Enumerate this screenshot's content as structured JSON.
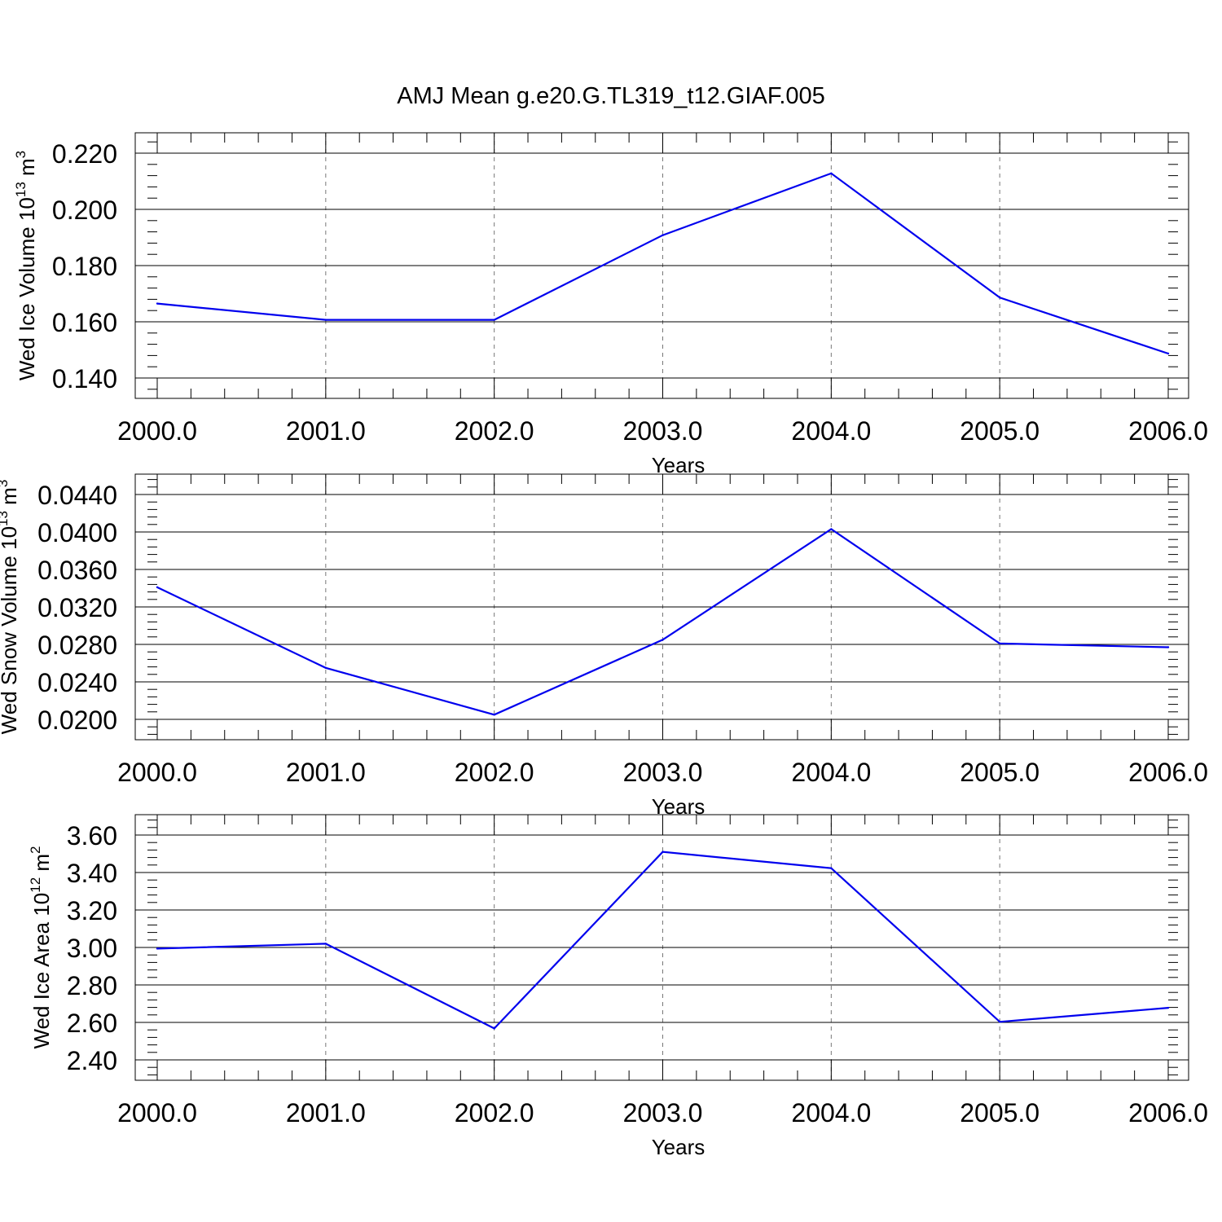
{
  "title": "AMJ Mean g.e20.G.TL319_t12.GIAF.005",
  "colors": {
    "line": "#0000ee",
    "grid": "#777777",
    "axis": "#000000"
  },
  "chart_data": [
    {
      "type": "line",
      "ylabel": "Wed Ice Volume 10",
      "ylabel_exp": "13",
      "ylabel_unit": " m",
      "ylabel_unit_exp": "3",
      "xlabel": "Years",
      "xlim": [
        2000,
        2006
      ],
      "ylim": [
        0.14,
        0.22
      ],
      "yticks": [
        "0.140",
        "0.160",
        "0.180",
        "0.200",
        "0.220"
      ],
      "xticks": [
        "2000.0",
        "2001.0",
        "2002.0",
        "2003.0",
        "2004.0",
        "2005.0",
        "2006.0"
      ],
      "x": [
        2000,
        2001,
        2002,
        2003,
        2004,
        2005,
        2006
      ],
      "y": [
        0.1665,
        0.1607,
        0.1607,
        0.1908,
        0.2128,
        0.1686,
        0.1487
      ],
      "grid": "vertical dashed"
    },
    {
      "type": "line",
      "ylabel": "Wed Snow Volume 10",
      "ylabel_exp": "13",
      "ylabel_unit": " m",
      "ylabel_unit_exp": "3",
      "xlabel": "Years",
      "xlim": [
        2000,
        2006
      ],
      "ylim": [
        0.02,
        0.044
      ],
      "yticks": [
        "0.0200",
        "0.0240",
        "0.0280",
        "0.0320",
        "0.0360",
        "0.0400",
        "0.0440"
      ],
      "xticks": [
        "2000.0",
        "2001.0",
        "2002.0",
        "2003.0",
        "2004.0",
        "2005.0",
        "2006.0"
      ],
      "x": [
        2000,
        2001,
        2002,
        2003,
        2004,
        2005,
        2006
      ],
      "y": [
        0.0341,
        0.0255,
        0.0205,
        0.0285,
        0.0403,
        0.0281,
        0.0277
      ],
      "grid": "vertical dashed"
    },
    {
      "type": "line",
      "ylabel": "Wed Ice Area 10",
      "ylabel_exp": "12",
      "ylabel_unit": " m",
      "ylabel_unit_exp": "2",
      "xlabel": "Years",
      "xlim": [
        2000,
        2006
      ],
      "ylim": [
        2.4,
        3.6
      ],
      "yticks": [
        "2.40",
        "2.60",
        "2.80",
        "3.00",
        "3.20",
        "3.40",
        "3.60"
      ],
      "xticks": [
        "2000.0",
        "2001.0",
        "2002.0",
        "2003.0",
        "2004.0",
        "2005.0",
        "2006.0"
      ],
      "x": [
        2000,
        2001,
        2002,
        2003,
        2004,
        2005,
        2006
      ],
      "y": [
        2.994,
        3.02,
        2.568,
        3.51,
        3.423,
        2.603,
        2.678
      ],
      "grid": "vertical dashed"
    }
  ]
}
